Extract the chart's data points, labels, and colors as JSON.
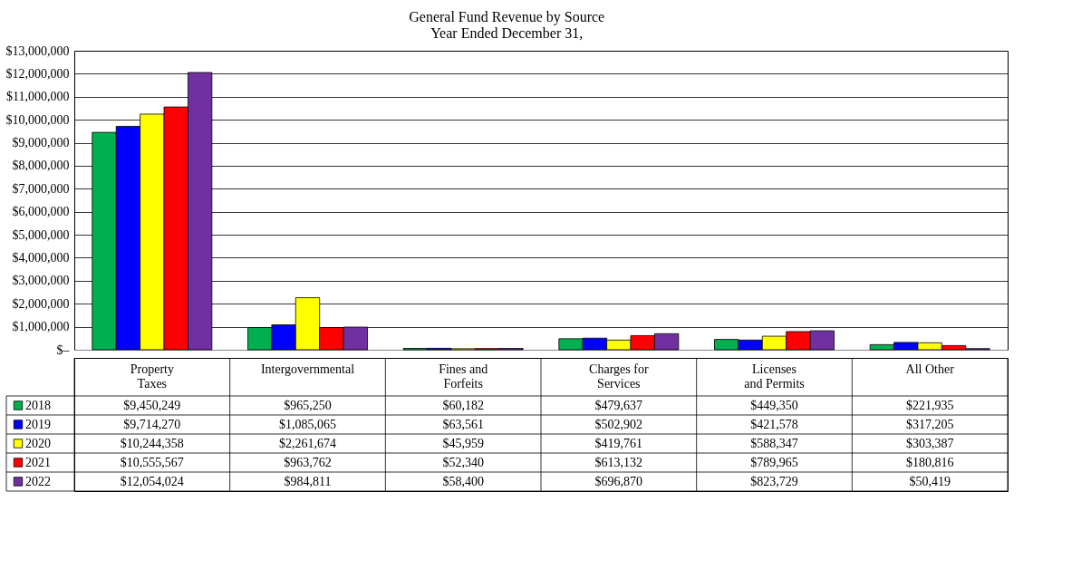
{
  "chart_data": {
    "type": "bar",
    "title": "General Fund Revenue by Source",
    "subtitle": "Year Ended December 31,",
    "categories": [
      "Property Taxes",
      "Intergovernmental",
      "Fines and Forfeits",
      "Charges for Services",
      "Licenses and Permits",
      "All Other"
    ],
    "series": [
      {
        "name": "2018",
        "color": "#00b050",
        "values": [
          9450249,
          965250,
          60182,
          479637,
          449350,
          221935
        ],
        "value_labels": [
          "$9,450,249",
          "$965,250",
          "$60,182",
          "$479,637",
          "$449,350",
          "$221,935"
        ]
      },
      {
        "name": "2019",
        "color": "#0000ff",
        "values": [
          9714270,
          1085065,
          63561,
          502902,
          421578,
          317205
        ],
        "value_labels": [
          "$9,714,270",
          "$1,085,065",
          "$63,561",
          "$502,902",
          "$421,578",
          "$317,205"
        ]
      },
      {
        "name": "2020",
        "color": "#ffff00",
        "values": [
          10244358,
          2261674,
          45959,
          419761,
          588347,
          303387
        ],
        "value_labels": [
          "$10,244,358",
          "$2,261,674",
          "$45,959",
          "$419,761",
          "$588,347",
          "$303,387"
        ]
      },
      {
        "name": "2021",
        "color": "#ff0000",
        "values": [
          10555567,
          963762,
          52340,
          613132,
          789965,
          180816
        ],
        "value_labels": [
          "$10,555,567",
          "$963,762",
          "$52,340",
          "$613,132",
          "$789,965",
          "$180,816"
        ]
      },
      {
        "name": "2022",
        "color": "#7030a0",
        "values": [
          12054024,
          984811,
          58400,
          696870,
          823729,
          50419
        ],
        "value_labels": [
          "$12,054,024",
          "$984,811",
          "$58,400",
          "$696,870",
          "$823,729",
          "$50,419"
        ]
      }
    ],
    "ylim": [
      0,
      13000000
    ],
    "yticks": [
      {
        "value": 0,
        "label": "$–"
      },
      {
        "value": 1000000,
        "label": "$1,000,000"
      },
      {
        "value": 2000000,
        "label": "$2,000,000"
      },
      {
        "value": 3000000,
        "label": "$3,000,000"
      },
      {
        "value": 4000000,
        "label": "$4,000,000"
      },
      {
        "value": 5000000,
        "label": "$5,000,000"
      },
      {
        "value": 6000000,
        "label": "$6,000,000"
      },
      {
        "value": 7000000,
        "label": "$7,000,000"
      },
      {
        "value": 8000000,
        "label": "$8,000,000"
      },
      {
        "value": 9000000,
        "label": "$9,000,000"
      },
      {
        "value": 10000000,
        "label": "$10,000,000"
      },
      {
        "value": 11000000,
        "label": "$11,000,000"
      },
      {
        "value": 12000000,
        "label": "$12,000,000"
      },
      {
        "value": 13000000,
        "label": "$13,000,000"
      }
    ],
    "grid": "y",
    "legend": "bottom left"
  }
}
